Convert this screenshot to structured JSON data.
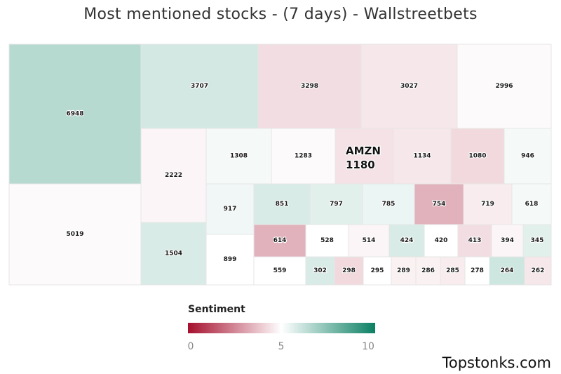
{
  "chart_data": {
    "type": "treemap",
    "title": "Most mentioned stocks - (7 days) - Wallstreetbets",
    "legend": {
      "title": "Sentiment",
      "ticks": [
        "0",
        "5",
        "10"
      ],
      "scale_min": 0,
      "scale_mid": 5,
      "scale_max": 10,
      "colors": {
        "low": "#a50f2d",
        "mid": "#ffffff",
        "high": "#0b8063"
      }
    },
    "items": [
      {
        "value": 6948,
        "sentiment": 6.5
      },
      {
        "value": 3707,
        "sentiment": 5.9
      },
      {
        "value": 3298,
        "sentiment": 4.3
      },
      {
        "value": 3027,
        "sentiment": 4.5
      },
      {
        "value": 2996,
        "sentiment": 4.9
      },
      {
        "value": 2222,
        "sentiment": 4.8
      },
      {
        "value": 1308,
        "sentiment": 5.2
      },
      {
        "value": 1283,
        "sentiment": 4.9
      },
      {
        "value": 1180,
        "sentiment": 4.4,
        "ticker": "AMZN"
      },
      {
        "value": 1134,
        "sentiment": 4.5
      },
      {
        "value": 1080,
        "sentiment": 4.2
      },
      {
        "value": 946,
        "sentiment": 5.2
      },
      {
        "value": 5019,
        "sentiment": 4.9
      },
      {
        "value": 1504,
        "sentiment": 5.8
      },
      {
        "value": 917,
        "sentiment": 5.3
      },
      {
        "value": 851,
        "sentiment": 5.8
      },
      {
        "value": 797,
        "sentiment": 5.6
      },
      {
        "value": 785,
        "sentiment": 5.4
      },
      {
        "value": 754,
        "sentiment": 3.4
      },
      {
        "value": 719,
        "sentiment": 4.6
      },
      {
        "value": 618,
        "sentiment": 5.2
      },
      {
        "value": 899,
        "sentiment": 5.0
      },
      {
        "value": 614,
        "sentiment": 3.4
      },
      {
        "value": 528,
        "sentiment": 5.0
      },
      {
        "value": 514,
        "sentiment": 4.8
      },
      {
        "value": 424,
        "sentiment": 5.8
      },
      {
        "value": 420,
        "sentiment": 5.0
      },
      {
        "value": 413,
        "sentiment": 4.3
      },
      {
        "value": 394,
        "sentiment": 4.8
      },
      {
        "value": 345,
        "sentiment": 5.6
      },
      {
        "value": 559,
        "sentiment": 5.0
      },
      {
        "value": 302,
        "sentiment": 5.8
      },
      {
        "value": 298,
        "sentiment": 4.2
      },
      {
        "value": 295,
        "sentiment": 5.0
      },
      {
        "value": 289,
        "sentiment": 4.7
      },
      {
        "value": 286,
        "sentiment": 4.7
      },
      {
        "value": 285,
        "sentiment": 4.6
      },
      {
        "value": 278,
        "sentiment": 5.0
      },
      {
        "value": 264,
        "sentiment": 6.0
      },
      {
        "value": 262,
        "sentiment": 4.5
      }
    ]
  },
  "footer": {
    "brand": "Topstonks.com"
  }
}
